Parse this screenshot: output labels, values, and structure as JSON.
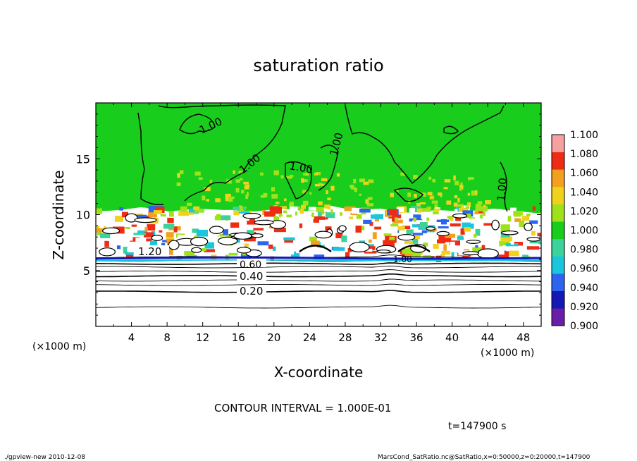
{
  "chart_data": {
    "type": "heatmap",
    "title": "saturation ratio",
    "xlabel": "X-coordinate",
    "ylabel": "Z-coordinate",
    "x_unit_left": "(×1000 m)",
    "x_unit_right": "(×1000 m)",
    "xlim": [
      0,
      50
    ],
    "ylim": [
      0,
      20
    ],
    "x_ticks": [
      4,
      8,
      12,
      16,
      20,
      24,
      28,
      32,
      36,
      40,
      44,
      48
    ],
    "y_ticks": [
      5,
      10,
      15
    ],
    "colorbar": {
      "levels": [
        "0.900",
        "0.920",
        "0.940",
        "0.960",
        "0.980",
        "1.000",
        "1.020",
        "1.040",
        "1.060",
        "1.080",
        "1.100"
      ],
      "colors": [
        "#6a1ea8",
        "#1418b4",
        "#2c64f0",
        "#19c6dc",
        "#3cd29b",
        "#18cd1c",
        "#9fe11a",
        "#f0d21c",
        "#f4a01e",
        "#ee2c14",
        "#f6a0a0"
      ]
    },
    "contour_labels": [
      "1.00",
      "1.00",
      "1.00",
      "1.00",
      "1.00",
      "1.00",
      "1.20",
      "0.60",
      "0.40",
      "0.20",
      "0.60"
    ],
    "low_contour_levels_z": [
      1.7,
      3.1,
      3.7,
      4.1,
      4.5,
      4.9,
      5.3,
      5.6,
      5.9,
      6.2
    ],
    "contour_interval_text": "CONTOUR INTERVAL = 1.000E-01",
    "time_text": "t=147900 s"
  },
  "footer": {
    "left": "./gpview-new   2010-12-08",
    "right": "MarsCond_SatRatio.nc@SatRatio,x=0:50000,z=0:20000,t=147900"
  }
}
